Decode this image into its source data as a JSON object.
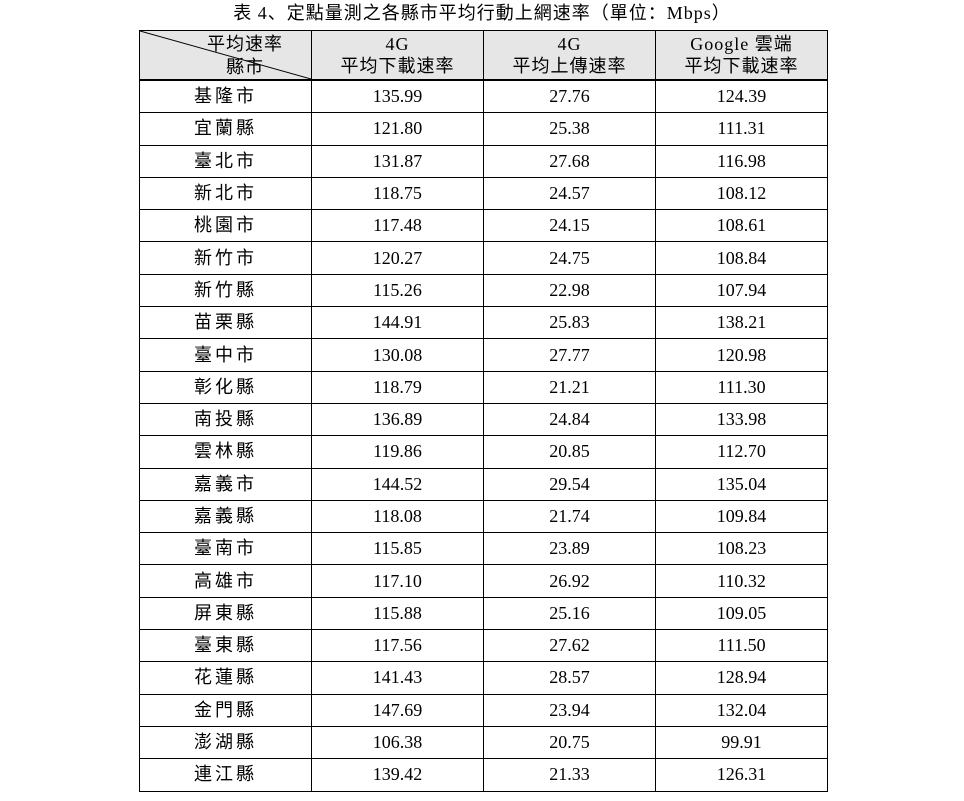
{
  "title": "表 4、定點量測之各縣市平均行動上網速率（單位：Mbps）",
  "header": {
    "corner_top": "平均速率",
    "corner_bottom": "縣市",
    "columns": [
      {
        "line1": "4G",
        "line2": "平均下載速率"
      },
      {
        "line1": "4G",
        "line2": "平均上傳速率"
      },
      {
        "line1": "Google 雲端",
        "line2": "平均下載速率"
      }
    ]
  },
  "rows": [
    {
      "name": "基隆市",
      "v": [
        "135.99",
        "27.76",
        "124.39"
      ]
    },
    {
      "name": "宜蘭縣",
      "v": [
        "121.80",
        "25.38",
        "111.31"
      ]
    },
    {
      "name": "臺北市",
      "v": [
        "131.87",
        "27.68",
        "116.98"
      ]
    },
    {
      "name": "新北市",
      "v": [
        "118.75",
        "24.57",
        "108.12"
      ]
    },
    {
      "name": "桃園市",
      "v": [
        "117.48",
        "24.15",
        "108.61"
      ]
    },
    {
      "name": "新竹市",
      "v": [
        "120.27",
        "24.75",
        "108.84"
      ]
    },
    {
      "name": "新竹縣",
      "v": [
        "115.26",
        "22.98",
        "107.94"
      ]
    },
    {
      "name": "苗栗縣",
      "v": [
        "144.91",
        "25.83",
        "138.21"
      ]
    },
    {
      "name": "臺中市",
      "v": [
        "130.08",
        "27.77",
        "120.98"
      ]
    },
    {
      "name": "彰化縣",
      "v": [
        "118.79",
        "21.21",
        "111.30"
      ]
    },
    {
      "name": "南投縣",
      "v": [
        "136.89",
        "24.84",
        "133.98"
      ]
    },
    {
      "name": "雲林縣",
      "v": [
        "119.86",
        "20.85",
        "112.70"
      ]
    },
    {
      "name": "嘉義市",
      "v": [
        "144.52",
        "29.54",
        "135.04"
      ]
    },
    {
      "name": "嘉義縣",
      "v": [
        "118.08",
        "21.74",
        "109.84"
      ]
    },
    {
      "name": "臺南市",
      "v": [
        "115.85",
        "23.89",
        "108.23"
      ]
    },
    {
      "name": "高雄市",
      "v": [
        "117.10",
        "26.92",
        "110.32"
      ]
    },
    {
      "name": "屏東縣",
      "v": [
        "115.88",
        "25.16",
        "109.05"
      ]
    },
    {
      "name": "臺東縣",
      "v": [
        "117.56",
        "27.62",
        "111.50"
      ]
    },
    {
      "name": "花蓮縣",
      "v": [
        "141.43",
        "28.57",
        "128.94"
      ]
    },
    {
      "name": "金門縣",
      "v": [
        "147.69",
        "23.94",
        "132.04"
      ]
    },
    {
      "name": "澎湖縣",
      "v": [
        "106.38",
        "20.75",
        "99.91"
      ]
    },
    {
      "name": "連江縣",
      "v": [
        "139.42",
        "21.33",
        "126.31"
      ]
    }
  ]
}
